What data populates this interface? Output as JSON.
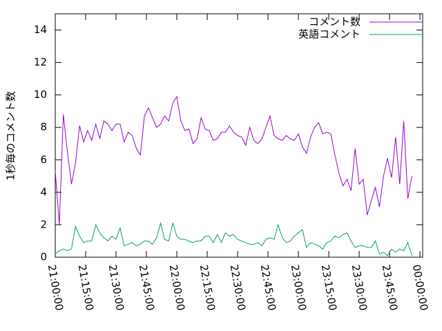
{
  "chart_data": {
    "type": "line",
    "ylabel": "1秒毎のコメント数",
    "x": [
      75600,
      75720,
      75840,
      75960,
      76080,
      76200,
      76320,
      76440,
      76560,
      76680,
      76800,
      76920,
      77040,
      77160,
      77280,
      77400,
      77520,
      77640,
      77760,
      77880,
      78000,
      78120,
      78240,
      78360,
      78480,
      78600,
      78720,
      78840,
      78960,
      79080,
      79200,
      79320,
      79440,
      79560,
      79680,
      79800,
      79920,
      80040,
      80160,
      80280,
      80400,
      80520,
      80640,
      80760,
      80880,
      81000,
      81120,
      81240,
      81360,
      81480,
      81600,
      81720,
      81840,
      81960,
      82080,
      82200,
      82320,
      82440,
      82560,
      82680,
      82800,
      82920,
      83040,
      83160,
      83280,
      83400,
      83520,
      83640,
      83760,
      83880,
      84000,
      84120,
      84240,
      84360,
      84480,
      84600,
      84720,
      84840,
      84960,
      85080,
      85200,
      85320,
      85440,
      85560,
      85680,
      85800,
      85920,
      86040,
      86160
    ],
    "series": [
      {
        "name": "コメント数",
        "color": "#9400d3",
        "values": [
          5.3,
          2.0,
          8.8,
          6.5,
          4.5,
          5.8,
          8.1,
          7.1,
          7.8,
          7.2,
          8.2,
          7.3,
          8.4,
          8.2,
          7.8,
          8.2,
          8.2,
          7.1,
          7.7,
          7.5,
          6.7,
          6.3,
          8.7,
          9.2,
          8.6,
          8.0,
          8.2,
          8.7,
          8.4,
          9.5,
          9.9,
          8.4,
          7.8,
          7.9,
          7.0,
          7.3,
          8.6,
          7.9,
          7.8,
          7.2,
          7.3,
          7.7,
          7.7,
          8.1,
          7.7,
          7.5,
          7.4,
          6.9,
          8.0,
          7.2,
          7.0,
          7.3,
          8.0,
          8.7,
          7.5,
          7.3,
          7.2,
          7.5,
          7.3,
          7.2,
          7.6,
          6.8,
          6.4,
          7.4,
          8.0,
          8.3,
          7.6,
          7.7,
          7.6,
          6.3,
          5.2,
          4.4,
          4.8,
          4.1,
          6.7,
          4.5,
          4.8,
          2.6,
          3.5,
          4.3,
          3.1,
          5.0,
          6.1,
          4.9,
          7.4,
          4.5,
          8.4,
          3.6,
          5.0
        ]
      },
      {
        "name": "英語コメント",
        "color": "#009e73",
        "values": [
          0.2,
          0.4,
          0.5,
          0.4,
          0.5,
          1.9,
          1.3,
          0.9,
          1.0,
          1.0,
          2.0,
          1.5,
          1.2,
          1.0,
          1.3,
          1.1,
          1.8,
          0.7,
          0.8,
          0.9,
          0.7,
          0.8,
          1.0,
          1.0,
          0.8,
          1.2,
          2.1,
          1.1,
          1.0,
          2.1,
          1.3,
          1.1,
          1.1,
          1.0,
          0.9,
          1.0,
          1.0,
          1.3,
          1.3,
          0.9,
          1.4,
          0.9,
          1.5,
          1.3,
          1.4,
          1.1,
          1.0,
          0.9,
          0.8,
          0.8,
          0.9,
          0.7,
          1.1,
          1.2,
          1.1,
          2.0,
          1.2,
          0.9,
          1.0,
          1.3,
          1.5,
          1.7,
          0.6,
          0.9,
          0.8,
          0.7,
          0.5,
          0.9,
          1.0,
          1.3,
          1.2,
          1.4,
          1.5,
          1.0,
          0.6,
          0.7,
          0.7,
          0.6,
          0.6,
          1.0,
          0.2,
          0.3,
          0.1,
          0.5,
          0.3,
          0.5,
          0.4,
          0.9,
          0.1
        ]
      }
    ],
    "xlim": [
      75600,
      86480
    ],
    "xticks": [
      {
        "value": 75600,
        "label": "21:00:00"
      },
      {
        "value": 76500,
        "label": "21:15:00"
      },
      {
        "value": 77400,
        "label": "21:30:00"
      },
      {
        "value": 78300,
        "label": "21:45:00"
      },
      {
        "value": 79200,
        "label": "22:00:00"
      },
      {
        "value": 80100,
        "label": "22:15:00"
      },
      {
        "value": 81000,
        "label": "22:30:00"
      },
      {
        "value": 81900,
        "label": "22:45:00"
      },
      {
        "value": 82800,
        "label": "23:00:00"
      },
      {
        "value": 83700,
        "label": "23:15:00"
      },
      {
        "value": 84600,
        "label": "23:30:00"
      },
      {
        "value": 85500,
        "label": "23:45:00"
      },
      {
        "value": 86400,
        "label": "00:00:00"
      }
    ],
    "ylim": [
      0,
      15
    ],
    "yticks": [
      0,
      2,
      4,
      6,
      8,
      10,
      12,
      14
    ],
    "legend": "top-right"
  }
}
